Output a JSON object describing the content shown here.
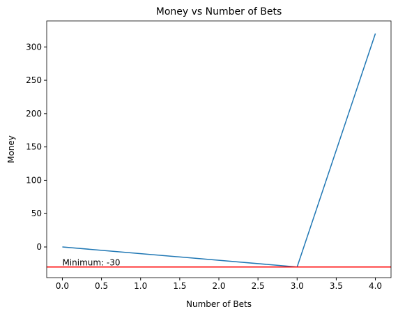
{
  "chart_data": {
    "type": "line",
    "title": "Money vs Number of Bets",
    "x_label": "Number of Bets",
    "y_label": "Money",
    "x": [
      0,
      1,
      2,
      3,
      4
    ],
    "series": [
      {
        "color": "#1f77b4",
        "values": [
          0,
          -10,
          -20,
          -30,
          320
        ]
      }
    ],
    "xlim": [
      -0.2,
      4.2
    ],
    "xticks": [
      {
        "value": 0,
        "label": "0.0"
      },
      {
        "value": 0.5,
        "label": "0.5"
      },
      {
        "value": 1,
        "label": "1.0"
      },
      {
        "value": 1.5,
        "label": "1.5"
      },
      {
        "value": 2,
        "label": "2.0"
      },
      {
        "value": 2.5,
        "label": "2.5"
      },
      {
        "value": 3,
        "label": "3.0"
      },
      {
        "value": 3.5,
        "label": "3.5"
      },
      {
        "value": 4,
        "label": "4.0"
      }
    ],
    "ylim": [
      -46,
      339
    ],
    "yticks": [
      0,
      50,
      100,
      150,
      200,
      250,
      300
    ],
    "hline": {
      "value": -30,
      "color": "red"
    },
    "annotation": {
      "text": "Minimum: -30",
      "x": 0,
      "y": -30
    }
  }
}
